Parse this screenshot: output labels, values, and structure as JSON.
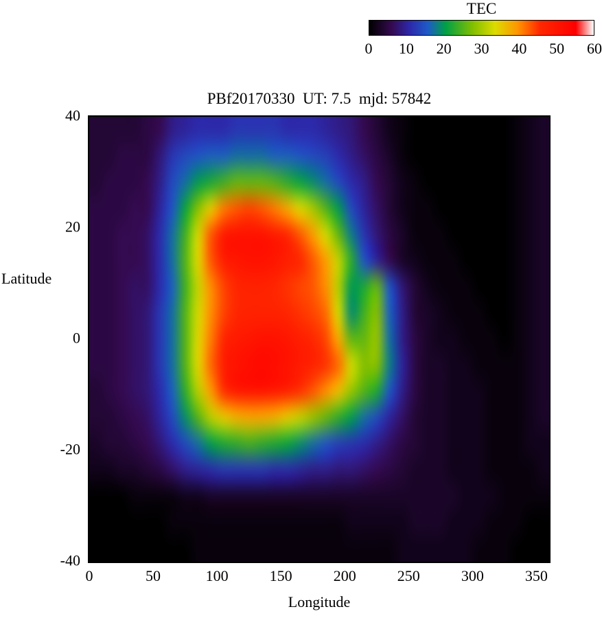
{
  "title": "PBf20170330  UT: 7.5  mjd: 57842",
  "colorbar": {
    "label": "TEC",
    "ticks": [
      "0",
      "10",
      "20",
      "30",
      "40",
      "50",
      "60"
    ],
    "min": 0,
    "max": 60
  },
  "axes": {
    "xlabel": "Longitude",
    "ylabel": "Latitude",
    "xticks": [
      "0",
      "50",
      "100",
      "150",
      "200",
      "250",
      "300",
      "350"
    ],
    "yticks": [
      "40",
      "20",
      "0",
      "-20",
      "-40"
    ],
    "xlim": [
      0,
      360
    ],
    "ylim": [
      -40,
      40
    ]
  },
  "chart_data": {
    "type": "heatmap",
    "title": "PBf20170330  UT: 7.5  mjd: 57842",
    "xlabel": "Longitude",
    "ylabel": "Latitude",
    "zlabel": "TEC",
    "xlim": [
      0,
      360
    ],
    "ylim": [
      -40,
      40
    ],
    "zlim": [
      0,
      60
    ],
    "x": [
      0,
      10,
      20,
      30,
      40,
      50,
      60,
      70,
      80,
      90,
      100,
      110,
      120,
      130,
      140,
      150,
      160,
      170,
      180,
      190,
      200,
      210,
      220,
      230,
      240,
      250,
      260,
      270,
      280,
      290,
      300,
      310,
      320,
      330,
      340,
      350
    ],
    "y": [
      40,
      35,
      30,
      25,
      20,
      15,
      10,
      5,
      0,
      -5,
      -10,
      -15,
      -20,
      -25,
      -30,
      -35,
      -40
    ],
    "values": [
      [
        4,
        4,
        4,
        4,
        5,
        6,
        9,
        10,
        11,
        11,
        11,
        12,
        12,
        12,
        12,
        11,
        11,
        11,
        10,
        9,
        8,
        6,
        4,
        2,
        1,
        0,
        0,
        0,
        0,
        0,
        0,
        0,
        0,
        1,
        2,
        3
      ],
      [
        4,
        4,
        5,
        5,
        5,
        8,
        12,
        14,
        15,
        16,
        16,
        17,
        17,
        17,
        16,
        16,
        15,
        14,
        13,
        11,
        9,
        7,
        5,
        3,
        1,
        0,
        0,
        0,
        0,
        0,
        0,
        0,
        0,
        1,
        2,
        3
      ],
      [
        4,
        5,
        5,
        5,
        6,
        9,
        14,
        17,
        20,
        22,
        24,
        26,
        26,
        26,
        25,
        23,
        21,
        19,
        17,
        14,
        11,
        9,
        6,
        4,
        2,
        1,
        0,
        0,
        0,
        0,
        0,
        0,
        0,
        1,
        2,
        3
      ],
      [
        5,
        5,
        5,
        6,
        6,
        10,
        15,
        21,
        28,
        35,
        41,
        43,
        44,
        43,
        41,
        38,
        34,
        30,
        25,
        20,
        14,
        10,
        7,
        4,
        2,
        1,
        1,
        0,
        0,
        0,
        0,
        0,
        0,
        1,
        2,
        3
      ],
      [
        5,
        5,
        6,
        6,
        7,
        11,
        17,
        24,
        33,
        43,
        49,
        51,
        51,
        51,
        49,
        46,
        43,
        39,
        33,
        26,
        18,
        12,
        8,
        5,
        3,
        1,
        1,
        1,
        0,
        0,
        0,
        0,
        0,
        1,
        2,
        3
      ],
      [
        5,
        5,
        6,
        6,
        7,
        11,
        17,
        25,
        34,
        43,
        48,
        50,
        51,
        51,
        50,
        48,
        46,
        43,
        39,
        32,
        23,
        15,
        10,
        6,
        3,
        2,
        1,
        1,
        1,
        0,
        0,
        0,
        0,
        1,
        2,
        3
      ],
      [
        5,
        5,
        6,
        7,
        7,
        11,
        16,
        24,
        32,
        40,
        44,
        46,
        47,
        47,
        46,
        45,
        44,
        43,
        40,
        31,
        20,
        22,
        26,
        15,
        8,
        4,
        2,
        1,
        1,
        1,
        0,
        0,
        0,
        1,
        2,
        3
      ],
      [
        5,
        5,
        6,
        7,
        8,
        12,
        17,
        25,
        33,
        40,
        44,
        46,
        47,
        47,
        47,
        46,
        45,
        44,
        42,
        33,
        19,
        24,
        28,
        16,
        9,
        4,
        3,
        2,
        1,
        1,
        1,
        0,
        0,
        1,
        2,
        3
      ],
      [
        5,
        5,
        6,
        7,
        8,
        12,
        17,
        25,
        34,
        41,
        46,
        49,
        50,
        51,
        51,
        50,
        48,
        46,
        44,
        38,
        26,
        26,
        29,
        17,
        9,
        5,
        3,
        2,
        2,
        1,
        1,
        1,
        0,
        1,
        2,
        3
      ],
      [
        5,
        5,
        6,
        7,
        8,
        12,
        17,
        25,
        34,
        42,
        48,
        51,
        52,
        53,
        52,
        51,
        49,
        47,
        45,
        42,
        33,
        28,
        28,
        18,
        10,
        5,
        3,
        3,
        2,
        2,
        1,
        1,
        1,
        1,
        2,
        3
      ],
      [
        4,
        5,
        6,
        7,
        8,
        11,
        16,
        23,
        31,
        39,
        45,
        49,
        50,
        50,
        49,
        47,
        45,
        43,
        40,
        36,
        29,
        25,
        22,
        15,
        9,
        5,
        3,
        3,
        2,
        2,
        2,
        1,
        1,
        1,
        2,
        3
      ],
      [
        4,
        4,
        5,
        6,
        7,
        10,
        14,
        19,
        25,
        31,
        35,
        37,
        38,
        38,
        37,
        35,
        32,
        29,
        26,
        23,
        20,
        17,
        14,
        10,
        7,
        4,
        3,
        3,
        2,
        2,
        2,
        1,
        1,
        1,
        2,
        3
      ],
      [
        3,
        4,
        4,
        5,
        6,
        8,
        11,
        14,
        17,
        20,
        22,
        23,
        24,
        23,
        22,
        21,
        19,
        17,
        15,
        13,
        12,
        11,
        9,
        7,
        5,
        4,
        3,
        3,
        2,
        2,
        2,
        1,
        1,
        1,
        2,
        2
      ],
      [
        2,
        2,
        3,
        3,
        4,
        5,
        7,
        9,
        10,
        11,
        12,
        12,
        12,
        12,
        11,
        11,
        10,
        9,
        9,
        8,
        8,
        7,
        6,
        5,
        4,
        3,
        3,
        3,
        2,
        2,
        2,
        1,
        1,
        1,
        1,
        2
      ],
      [
        0,
        0,
        0,
        1,
        1,
        1,
        1,
        2,
        2,
        3,
        3,
        3,
        3,
        3,
        3,
        3,
        3,
        3,
        3,
        3,
        3,
        3,
        3,
        3,
        3,
        3,
        3,
        3,
        3,
        2,
        2,
        2,
        1,
        1,
        1,
        1
      ],
      [
        0,
        0,
        0,
        0,
        0,
        0,
        1,
        1,
        1,
        1,
        1,
        1,
        1,
        1,
        1,
        1,
        1,
        1,
        1,
        1,
        2,
        2,
        2,
        2,
        2,
        3,
        3,
        3,
        2,
        2,
        2,
        1,
        1,
        1,
        0,
        0
      ],
      [
        0,
        0,
        0,
        0,
        0,
        0,
        0,
        0,
        1,
        1,
        1,
        1,
        1,
        1,
        1,
        1,
        1,
        1,
        1,
        1,
        1,
        1,
        1,
        1,
        2,
        2,
        2,
        2,
        2,
        2,
        1,
        1,
        1,
        0,
        0,
        0
      ]
    ],
    "colormap_stops": [
      [
        0.0,
        [
          0,
          0,
          0
        ]
      ],
      [
        0.1,
        [
          52,
          10,
          80
        ]
      ],
      [
        0.18,
        [
          45,
          40,
          170
        ]
      ],
      [
        0.26,
        [
          30,
          90,
          200
        ]
      ],
      [
        0.34,
        [
          0,
          160,
          70
        ]
      ],
      [
        0.46,
        [
          130,
          190,
          0
        ]
      ],
      [
        0.56,
        [
          220,
          220,
          0
        ]
      ],
      [
        0.66,
        [
          255,
          150,
          0
        ]
      ],
      [
        0.76,
        [
          255,
          40,
          0
        ]
      ],
      [
        0.92,
        [
          255,
          0,
          0
        ]
      ],
      [
        1.0,
        [
          255,
          255,
          255
        ]
      ]
    ],
    "grid": false,
    "legend": "colorbar top-right"
  }
}
